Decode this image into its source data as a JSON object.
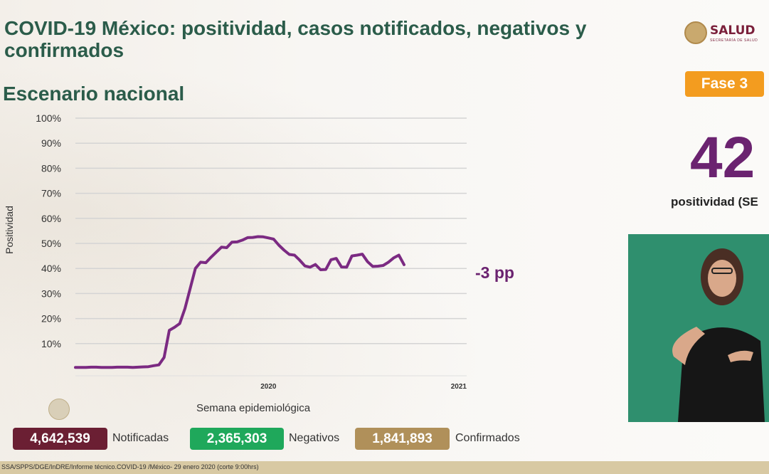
{
  "header": {
    "title": "COVID-19 México: positividad, casos notificados, negativos y confirmados",
    "subtitle": "Escenario nacional"
  },
  "logo": {
    "name": "SALUD",
    "sub": "SECRETARÍA DE SALUD"
  },
  "phase_badge": "Fase 3",
  "headline": {
    "value": "42",
    "label": "positividad (SE"
  },
  "annotation": "-3 pp",
  "totals": {
    "notificadas": {
      "value": "4,642,539",
      "label": "Notificadas",
      "color": "#6b1f33"
    },
    "negativos": {
      "value": "2,365,303",
      "label": "Negativos",
      "color": "#1fa85b"
    },
    "confirmados": {
      "value": "1,841,893",
      "label": "Confirmados",
      "color": "#b0905a"
    }
  },
  "source": "SSA/SPPS/DGE/InDRE/Informe técnico.COVID-19 /México- 29 enero 2020 (corte 9:00hrs)",
  "chart_data": {
    "type": "line",
    "ylabel": "Positividad",
    "xlabel": "Semana epidemiológica",
    "ylim": [
      0,
      100
    ],
    "yticks": [
      "100%",
      "90%",
      "80%",
      "70%",
      "60%",
      "50%",
      "40%",
      "30%",
      "20%",
      "10%"
    ],
    "year_labels": [
      {
        "label": "2020",
        "week_index": 38
      },
      {
        "label": "2021",
        "week_index": 76
      }
    ],
    "line_color": "#7b2a82",
    "series": [
      {
        "name": "Positividad",
        "values": [
          0.5,
          0.5,
          0.5,
          0.6,
          0.6,
          0.5,
          0.5,
          0.5,
          0.6,
          0.6,
          0.6,
          0.5,
          0.6,
          0.7,
          0.8,
          1.2,
          1.5,
          4.5,
          15.3,
          16.5,
          18.0,
          24.0,
          32.0,
          40.0,
          42.5,
          42.3,
          44.5,
          46.5,
          48.5,
          48.3,
          50.5,
          50.6,
          51.3,
          52.3,
          52.4,
          52.7,
          52.6,
          52.2,
          51.7,
          49.3,
          47.3,
          45.6,
          45.3,
          43.3,
          41.0,
          40.5,
          41.6,
          39.5,
          39.6,
          43.5,
          44.0,
          40.6,
          40.5,
          45.0,
          45.3,
          45.7,
          42.7,
          40.8,
          40.9,
          41.2,
          42.5,
          44.2,
          45.3,
          41.5
        ]
      }
    ]
  }
}
